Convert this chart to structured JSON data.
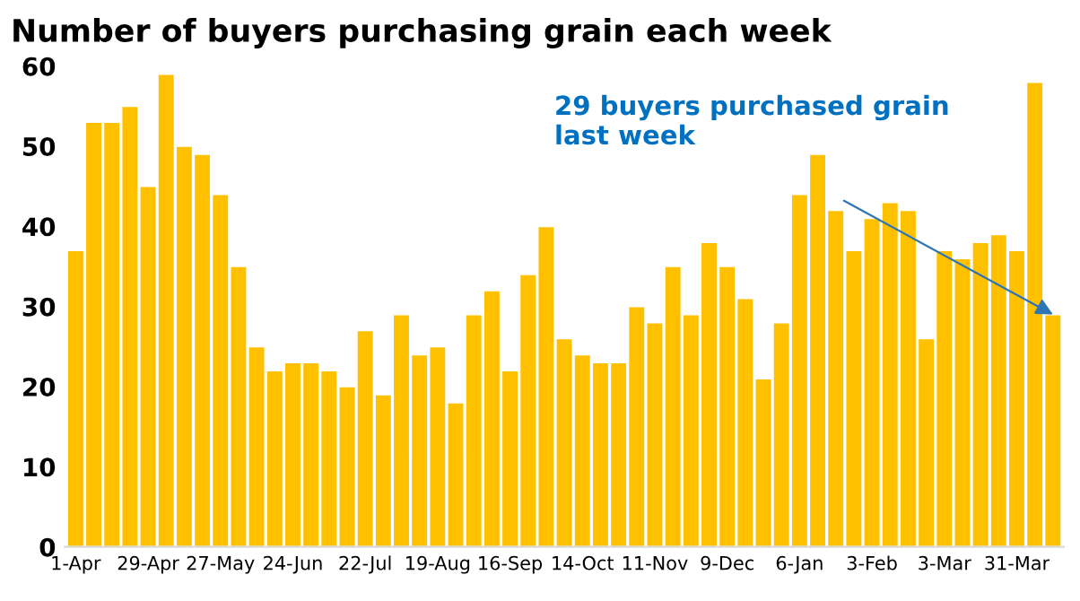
{
  "chart_data": {
    "type": "bar",
    "title": "Number of buyers purchasing grain each week",
    "categories": [
      "1-Apr",
      null,
      null,
      null,
      "29-Apr",
      null,
      null,
      null,
      "27-May",
      null,
      null,
      null,
      "24-Jun",
      null,
      null,
      null,
      "22-Jul",
      null,
      null,
      null,
      "19-Aug",
      null,
      null,
      null,
      "16-Sep",
      null,
      null,
      null,
      "14-Oct",
      null,
      null,
      null,
      "11-Nov",
      null,
      null,
      null,
      "9-Dec",
      null,
      null,
      null,
      "6-Jan",
      null,
      null,
      null,
      "3-Feb",
      null,
      null,
      null,
      "3-Mar",
      null,
      null,
      null,
      "31-Mar",
      null,
      null
    ],
    "values": [
      37,
      53,
      53,
      55,
      45,
      59,
      50,
      49,
      44,
      35,
      25,
      22,
      23,
      23,
      22,
      20,
      27,
      19,
      29,
      24,
      25,
      18,
      29,
      32,
      22,
      34,
      40,
      26,
      24,
      23,
      23,
      30,
      28,
      35,
      29,
      38,
      35,
      31,
      21,
      28,
      44,
      49,
      42,
      37,
      41,
      43,
      42,
      26,
      37,
      36,
      38,
      39,
      37,
      58,
      29
    ],
    "color": "#ffc000",
    "ylim": [
      0,
      60
    ],
    "yticks": [
      0,
      10,
      20,
      30,
      40,
      50,
      60
    ],
    "grid": false,
    "legend": false,
    "annotations": [
      "29 buyers purchased grain\nlast week"
    ]
  }
}
